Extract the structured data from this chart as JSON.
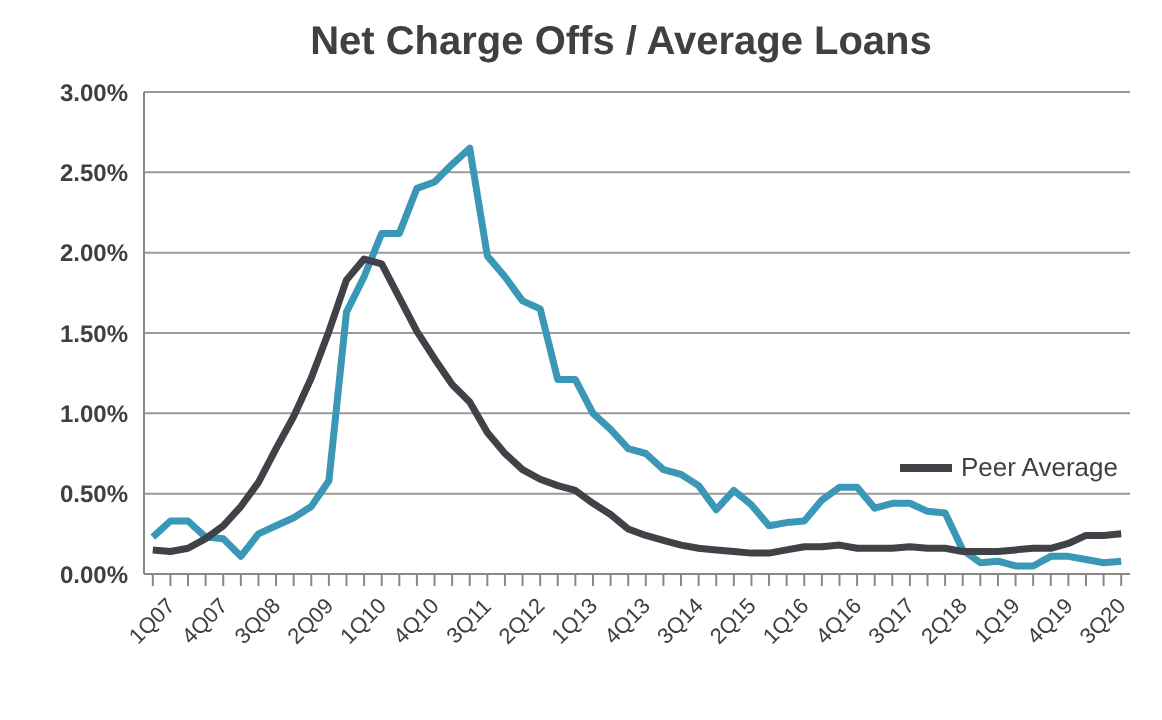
{
  "chart_data": {
    "type": "line",
    "title": "Net Charge Offs / Average Loans",
    "categories": [
      "1Q07",
      null,
      null,
      "4Q07",
      null,
      null,
      "3Q08",
      null,
      null,
      "2Q09",
      null,
      null,
      "1Q10",
      null,
      null,
      "4Q10",
      null,
      null,
      "3Q11",
      null,
      null,
      "2Q12",
      null,
      null,
      "1Q13",
      null,
      null,
      "4Q13",
      null,
      null,
      "3Q14",
      null,
      null,
      "2Q15",
      null,
      null,
      "1Q16",
      null,
      null,
      "4Q16",
      null,
      null,
      "3Q17",
      null,
      null,
      "2Q18",
      null,
      null,
      "1Q19",
      null,
      null,
      "4Q19",
      null,
      null,
      "3Q20",
      null
    ],
    "series": [
      {
        "color": "#3a97b5",
        "values": [
          0.23,
          0.33,
          0.33,
          0.23,
          0.22,
          0.11,
          0.25,
          0.3,
          0.35,
          0.42,
          0.58,
          1.63,
          1.85,
          2.12,
          2.12,
          2.4,
          2.44,
          2.55,
          2.65,
          1.98,
          1.85,
          1.7,
          1.65,
          1.21,
          1.21,
          1.0,
          0.9,
          0.78,
          0.75,
          0.65,
          0.62,
          0.55,
          0.4,
          0.52,
          0.43,
          0.3,
          0.32,
          0.33,
          0.46,
          0.54,
          0.54,
          0.41,
          0.44,
          0.44,
          0.39,
          0.38,
          0.15,
          0.07,
          0.08,
          0.05,
          0.05,
          0.11,
          0.11,
          0.09,
          0.07,
          0.08
        ]
      },
      {
        "name": "Peer Average",
        "color": "#3f4247",
        "values": [
          0.15,
          0.14,
          0.16,
          0.22,
          0.3,
          0.42,
          0.57,
          0.78,
          0.98,
          1.22,
          1.51,
          1.83,
          1.96,
          1.93,
          1.72,
          1.51,
          1.34,
          1.18,
          1.07,
          0.88,
          0.75,
          0.65,
          0.59,
          0.55,
          0.52,
          0.44,
          0.37,
          0.28,
          0.24,
          0.21,
          0.18,
          0.16,
          0.15,
          0.14,
          0.13,
          0.13,
          0.15,
          0.17,
          0.17,
          0.18,
          0.16,
          0.16,
          0.16,
          0.17,
          0.16,
          0.16,
          0.14,
          0.14,
          0.14,
          0.15,
          0.16,
          0.16,
          0.19,
          0.24,
          0.24,
          0.25
        ]
      }
    ],
    "ylim": [
      0,
      3
    ],
    "yticks": [
      {
        "value": 0,
        "label": "0.00%"
      },
      {
        "value": 0.5,
        "label": "0.50%"
      },
      {
        "value": 1,
        "label": "1.00%"
      },
      {
        "value": 1.5,
        "label": "1.50%"
      },
      {
        "value": 2,
        "label": "2.00%"
      },
      {
        "value": 2.5,
        "label": "2.50%"
      },
      {
        "value": 3,
        "label": "3.00%"
      }
    ],
    "grid": "y",
    "legend": "right",
    "marker": "none",
    "line_style": "solid"
  }
}
